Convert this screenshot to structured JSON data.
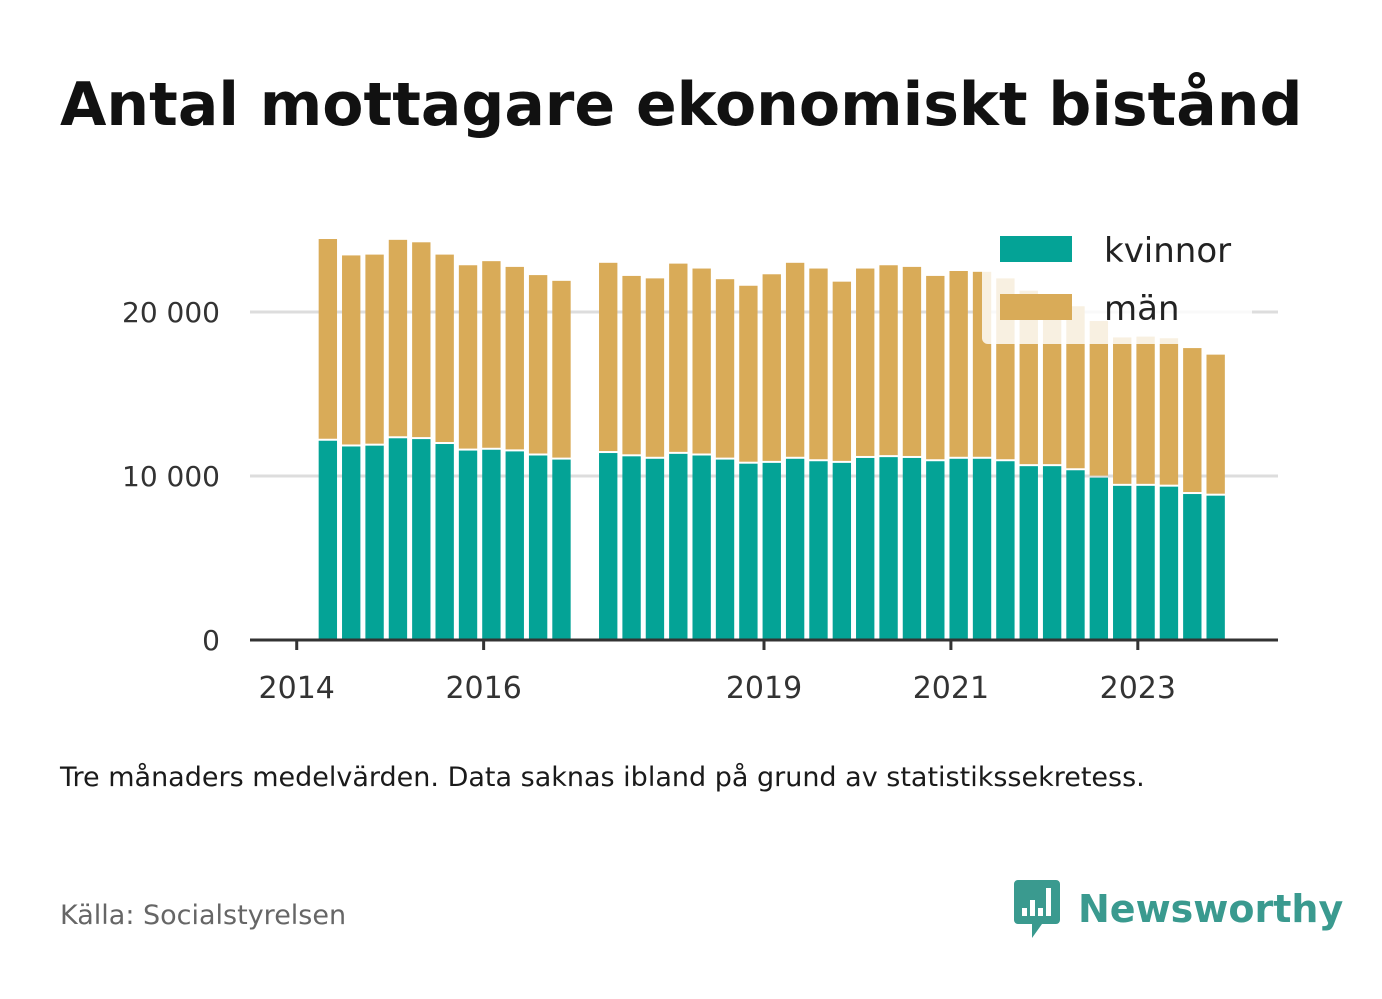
{
  "title": "Antal mottagare ekonomiskt bistånd",
  "note": "Tre månaders medelvärden. Data saknas ibland på grund av statistikssekretess.",
  "source": "Källa: Socialstyrelsen",
  "brand": {
    "name": "Newsworthy",
    "color": "#3a9a8f"
  },
  "colors": {
    "kvinnor": "#04a396",
    "man": "#d9ab58",
    "grid": "#dddddd",
    "axis": "#333333"
  },
  "chart_data": {
    "type": "bar",
    "stacked": true,
    "x_tick_labels": [
      "2014",
      "2016",
      "2019",
      "2021",
      "2023"
    ],
    "y_tick_labels": [
      "0",
      "10 000",
      "20 000"
    ],
    "y_ticks": [
      0,
      10000,
      20000
    ],
    "ylim": [
      0,
      25000
    ],
    "grid": true,
    "legend_position": "top-right",
    "x": [
      2014.333,
      2014.583,
      2014.833,
      2015.083,
      2015.333,
      2015.583,
      2015.833,
      2016.083,
      2016.333,
      2016.583,
      2016.833,
      2017.333,
      2017.583,
      2017.833,
      2018.083,
      2018.333,
      2018.583,
      2018.833,
      2019.083,
      2019.333,
      2019.583,
      2019.833,
      2020.083,
      2020.333,
      2020.583,
      2020.833,
      2021.083,
      2021.333,
      2021.583,
      2021.833,
      2022.083,
      2022.333,
      2022.583,
      2022.833,
      2023.083,
      2023.333,
      2023.583,
      2023.833
    ],
    "xlim": [
      2013.5,
      2024.5
    ],
    "series": [
      {
        "name": "kvinnor",
        "values": [
          12150,
          11800,
          11850,
          12300,
          12250,
          11950,
          11550,
          11600,
          11500,
          11250,
          11000,
          11400,
          11200,
          11050,
          11350,
          11250,
          11000,
          10750,
          10800,
          11050,
          10900,
          10800,
          11100,
          11150,
          11100,
          10900,
          11050,
          11050,
          10900,
          10600,
          10600,
          10350,
          9900,
          9400,
          9400,
          9350,
          8900,
          8800
        ]
      },
      {
        "name": "män",
        "values": [
          12300,
          11650,
          11650,
          12100,
          12000,
          11550,
          11300,
          11500,
          11250,
          11000,
          10900,
          11600,
          11000,
          11000,
          11600,
          11400,
          11000,
          10850,
          11500,
          11950,
          11750,
          11050,
          11550,
          11700,
          11650,
          11300,
          11450,
          11400,
          11150,
          10700,
          9600,
          10000,
          9550,
          9050,
          9100,
          9050,
          8900,
          8600
        ]
      }
    ]
  }
}
